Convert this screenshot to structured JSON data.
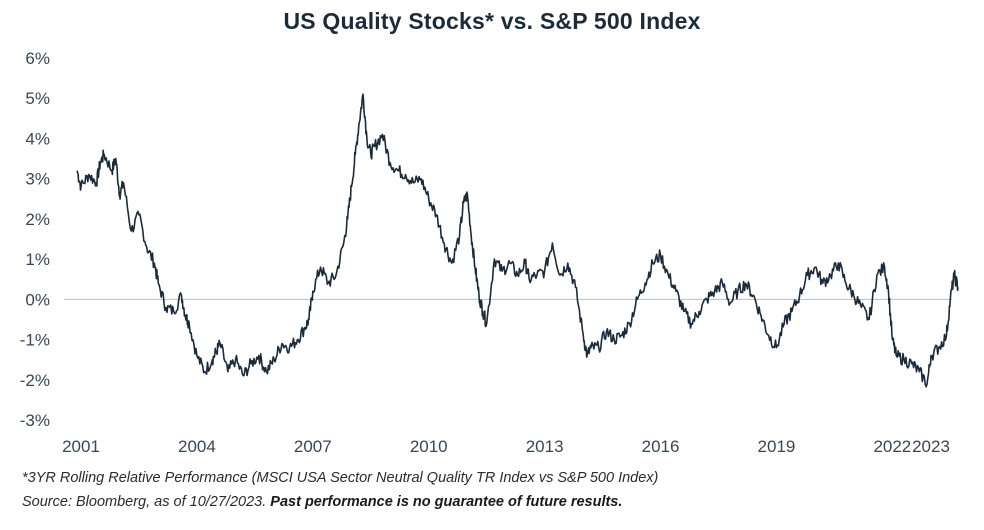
{
  "chart_data": {
    "type": "line",
    "title": "US Quality Stocks* vs. S&P 500 Index",
    "xlabel": "",
    "ylabel": "",
    "ylim": [
      -3,
      6
    ],
    "xlim": [
      2000.8,
      2023.8
    ],
    "y_ticks": [
      6,
      5,
      4,
      3,
      2,
      1,
      0,
      -1,
      -2,
      -3
    ],
    "y_tick_labels": [
      "6%",
      "5%",
      "4%",
      "3%",
      "2%",
      "1%",
      "0%",
      "-1%",
      "-2%",
      "-3%"
    ],
    "x_ticks": [
      2001,
      2004,
      2007,
      2010,
      2013,
      2016,
      2019,
      2022,
      2023
    ],
    "x_tick_labels": [
      "2001",
      "2004",
      "2007",
      "2010",
      "2013",
      "2016",
      "2019",
      "2022",
      "2023"
    ],
    "reference_line": 0,
    "series": [
      {
        "name": "3YR Rolling Relative Performance",
        "color": "#1c2b3a",
        "x": [
          2000.9,
          2001.0,
          2001.2,
          2001.4,
          2001.5,
          2001.6,
          2001.8,
          2001.9,
          2002.0,
          2002.1,
          2002.3,
          2002.5,
          2002.7,
          2002.9,
          2003.0,
          2003.2,
          2003.4,
          2003.6,
          2003.7,
          2003.8,
          2004.0,
          2004.2,
          2004.4,
          2004.5,
          2004.6,
          2004.8,
          2005.0,
          2005.2,
          2005.4,
          2005.6,
          2005.8,
          2006.0,
          2006.2,
          2006.4,
          2006.6,
          2006.8,
          2006.9,
          2007.0,
          2007.2,
          2007.4,
          2007.6,
          2007.8,
          2007.9,
          2008.0,
          2008.1,
          2008.2,
          2008.3,
          2008.4,
          2008.5,
          2008.6,
          2008.8,
          2009.0,
          2009.2,
          2009.4,
          2009.6,
          2009.8,
          2010.0,
          2010.2,
          2010.4,
          2010.6,
          2010.8,
          2010.9,
          2011.0,
          2011.1,
          2011.2,
          2011.3,
          2011.4,
          2011.5,
          2011.7,
          2011.9,
          2012.1,
          2012.3,
          2012.5,
          2012.6,
          2012.8,
          2013.0,
          2013.2,
          2013.4,
          2013.6,
          2013.8,
          2014.0,
          2014.1,
          2014.2,
          2014.4,
          2014.6,
          2014.8,
          2015.0,
          2015.2,
          2015.4,
          2015.6,
          2015.8,
          2016.0,
          2016.2,
          2016.4,
          2016.6,
          2016.8,
          2017.0,
          2017.2,
          2017.4,
          2017.6,
          2017.8,
          2018.0,
          2018.2,
          2018.4,
          2018.6,
          2018.8,
          2019.0,
          2019.2,
          2019.4,
          2019.6,
          2019.8,
          2020.0,
          2020.2,
          2020.4,
          2020.6,
          2020.8,
          2021.0,
          2021.2,
          2021.4,
          2021.6,
          2021.8,
          2021.9,
          2022.0,
          2022.1,
          2022.3,
          2022.5,
          2022.7,
          2022.9,
          2023.0,
          2023.2,
          2023.4,
          2023.5,
          2023.6,
          2023.7
        ],
        "values": [
          3.2,
          2.8,
          3.1,
          2.9,
          3.4,
          3.6,
          3.2,
          3.5,
          2.6,
          2.9,
          1.7,
          2.1,
          1.3,
          0.9,
          0.4,
          -0.2,
          -0.3,
          0.1,
          -0.4,
          -0.6,
          -1.4,
          -1.8,
          -1.5,
          -1.3,
          -1.1,
          -1.8,
          -1.5,
          -1.9,
          -1.6,
          -1.4,
          -1.8,
          -1.5,
          -1.1,
          -1.2,
          -1.0,
          -0.7,
          -0.5,
          0.2,
          0.8,
          0.4,
          0.6,
          1.4,
          2.0,
          2.8,
          3.6,
          4.4,
          5.1,
          4.0,
          3.6,
          3.8,
          4.1,
          3.4,
          3.2,
          3.1,
          2.9,
          3.0,
          2.5,
          2.1,
          1.4,
          0.9,
          1.6,
          2.4,
          2.6,
          1.6,
          0.8,
          0.1,
          -0.3,
          -0.6,
          1.0,
          0.7,
          0.9,
          0.6,
          0.9,
          0.5,
          0.6,
          0.7,
          1.4,
          0.6,
          0.9,
          0.3,
          -0.9,
          -1.4,
          -1.2,
          -1.2,
          -0.8,
          -1.0,
          -0.9,
          -0.6,
          0.0,
          0.4,
          0.9,
          1.1,
          0.6,
          0.2,
          -0.3,
          -0.6,
          -0.3,
          0.0,
          0.2,
          0.4,
          -0.1,
          0.2,
          0.4,
          0.1,
          -0.4,
          -0.9,
          -1.2,
          -0.6,
          -0.3,
          0.1,
          0.6,
          0.8,
          0.4,
          0.6,
          0.9,
          0.4,
          0.1,
          -0.2,
          -0.5,
          0.6,
          0.8,
          0.2,
          -1.0,
          -1.4,
          -1.5,
          -1.6,
          -1.8,
          -2.1,
          -1.4,
          -1.2,
          -0.9,
          0.0,
          0.6,
          0.3
        ]
      }
    ]
  },
  "footnote": {
    "line1": "*3YR Rolling Relative Performance (MSCI USA Sector Neutral Quality TR Index vs S&P 500 Index)",
    "line2_prefix": "Source: Bloomberg, as of 10/27/2023.",
    "line2_bold": "Past performance is no guarantee of future results."
  }
}
